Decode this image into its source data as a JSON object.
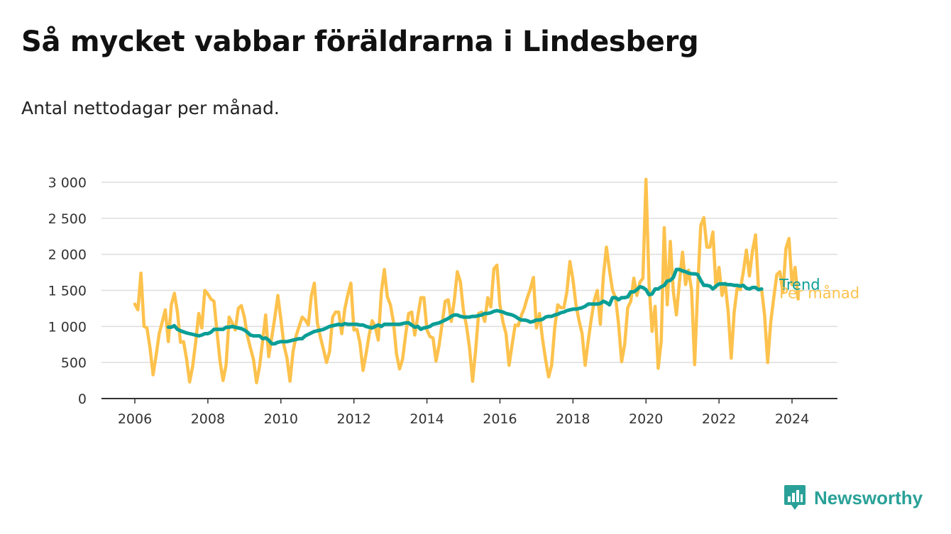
{
  "title": "Så mycket vabbar föräldrarna i Lindesberg",
  "subtitle": "Antal nettodagar per månad.",
  "brand": {
    "name": "Newsworthy",
    "icon": "newsworthy-logo-icon"
  },
  "colors": {
    "monthly": "#fdc24d",
    "trend": "#0a9e96",
    "grid": "#dddddd",
    "axis": "#333333",
    "brand": "#2aa198"
  },
  "chart_data": {
    "type": "line",
    "x_domain": [
      "2006-01",
      "2024-05"
    ],
    "ylim": [
      0,
      3000
    ],
    "y_ticks": [
      0,
      500,
      1000,
      1500,
      2000,
      2500,
      3000
    ],
    "y_tick_labels": [
      "0",
      "500",
      "1 000",
      "1 500",
      "2 000",
      "2 500",
      "3 000"
    ],
    "x_ticks": [
      2006,
      2008,
      2010,
      2012,
      2014,
      2016,
      2018,
      2020,
      2022,
      2024
    ],
    "x_tick_labels": [
      "2006",
      "2008",
      "2010",
      "2012",
      "2014",
      "2016",
      "2018",
      "2020",
      "2022",
      "2024"
    ],
    "grid": true,
    "series": [
      {
        "name": "Per månad",
        "x_start": "2006-01",
        "values": [
          1310,
          1230,
          1740,
          1000,
          980,
          700,
          330,
          600,
          900,
          1060,
          1230,
          790,
          1300,
          1460,
          1200,
          780,
          790,
          550,
          230,
          450,
          780,
          1180,
          980,
          1500,
          1450,
          1380,
          1350,
          920,
          520,
          250,
          470,
          1130,
          1050,
          950,
          1250,
          1290,
          1130,
          870,
          700,
          540,
          220,
          450,
          800,
          1160,
          580,
          850,
          1120,
          1430,
          1100,
          740,
          560,
          240,
          650,
          870,
          1000,
          1130,
          1090,
          1020,
          1420,
          1600,
          1050,
          850,
          680,
          500,
          650,
          1130,
          1200,
          1200,
          900,
          1240,
          1440,
          1600,
          950,
          960,
          770,
          390,
          620,
          880,
          1080,
          1000,
          810,
          1470,
          1790,
          1410,
          1300,
          1060,
          620,
          410,
          550,
          880,
          1180,
          1200,
          880,
          1140,
          1400,
          1400,
          950,
          860,
          840,
          520,
          740,
          1040,
          1350,
          1370,
          1070,
          1360,
          1760,
          1620,
          1220,
          1010,
          700,
          240,
          660,
          1180,
          1200,
          1070,
          1400,
          1270,
          1800,
          1850,
          1300,
          1060,
          900,
          460,
          750,
          1020,
          1010,
          1150,
          1250,
          1400,
          1520,
          1680,
          980,
          1180,
          820,
          540,
          300,
          460,
          980,
          1300,
          1260,
          1260,
          1480,
          1900,
          1650,
          1300,
          1080,
          900,
          460,
          800,
          1100,
          1360,
          1500,
          1030,
          1700,
          2100,
          1780,
          1500,
          1400,
          1030,
          510,
          750,
          1260,
          1350,
          1670,
          1430,
          1610,
          1670,
          3040,
          1600,
          930,
          1280,
          420,
          800,
          2370,
          1300,
          2180,
          1480,
          1160,
          1620,
          2030,
          1580,
          1780,
          1500,
          470,
          1530,
          2400,
          2510,
          2100,
          2100,
          2310,
          1540,
          1820,
          1430,
          1600,
          1210,
          560,
          1200,
          1540,
          1510,
          1760,
          2060,
          1700,
          2050,
          2270,
          1520,
          1520,
          1150,
          500,
          1060,
          1400,
          1720,
          1760,
          1470,
          2080,
          2220,
          1580,
          1820,
          1380
        ]
      },
      {
        "name": "Trend",
        "x_start": "2006-12",
        "values": [
          990,
          990,
          1010,
          960,
          940,
          925,
          910,
          900,
          890,
          880,
          870,
          880,
          900,
          900,
          920,
          960,
          960,
          960,
          960,
          990,
          990,
          1000,
          990,
          980,
          970,
          950,
          920,
          880,
          870,
          870,
          870,
          830,
          840,
          810,
          760,
          760,
          780,
          790,
          790,
          790,
          800,
          810,
          820,
          830,
          830,
          870,
          890,
          910,
          930,
          940,
          950,
          960,
          980,
          1000,
          1010,
          1020,
          1030,
          1020,
          1040,
          1030,
          1030,
          1030,
          1030,
          1020,
          1020,
          1000,
          990,
          980,
          1000,
          1020,
          1000,
          1030,
          1030,
          1030,
          1030,
          1030,
          1030,
          1040,
          1050,
          1050,
          1020,
          990,
          1000,
          960,
          980,
          990,
          1000,
          1030,
          1040,
          1050,
          1070,
          1090,
          1110,
          1140,
          1160,
          1160,
          1140,
          1130,
          1130,
          1130,
          1140,
          1140,
          1150,
          1160,
          1180,
          1180,
          1190,
          1210,
          1220,
          1210,
          1200,
          1180,
          1170,
          1160,
          1140,
          1110,
          1090,
          1090,
          1080,
          1060,
          1070,
          1090,
          1090,
          1100,
          1130,
          1140,
          1140,
          1160,
          1170,
          1190,
          1200,
          1220,
          1230,
          1240,
          1240,
          1250,
          1260,
          1280,
          1310,
          1310,
          1310,
          1310,
          1320,
          1350,
          1330,
          1300,
          1400,
          1400,
          1370,
          1400,
          1400,
          1410,
          1480,
          1480,
          1510,
          1550,
          1540,
          1510,
          1440,
          1450,
          1520,
          1520,
          1550,
          1570,
          1630,
          1640,
          1680,
          1790,
          1790,
          1770,
          1760,
          1740,
          1730,
          1730,
          1720,
          1640,
          1570,
          1570,
          1560,
          1520,
          1560,
          1590,
          1590,
          1590,
          1580,
          1580,
          1570,
          1570,
          1560,
          1570,
          1530,
          1520,
          1540,
          1540,
          1510,
          1520
        ]
      }
    ]
  }
}
